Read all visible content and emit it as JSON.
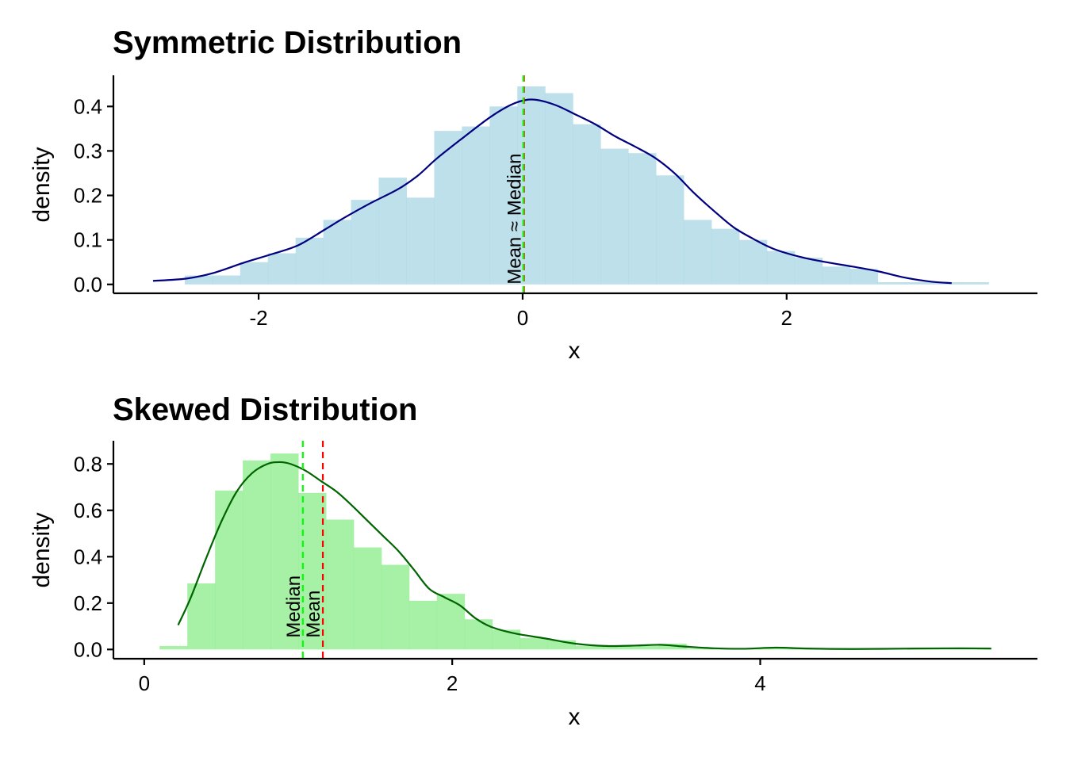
{
  "chart_data": [
    {
      "type": "histogram",
      "title": "Symmetric Distribution",
      "xlabel": "x",
      "ylabel": "density",
      "xlim": [
        -3.1,
        3.9
      ],
      "ylim": [
        -0.02,
        0.47
      ],
      "x_ticks": [
        -2,
        0,
        2
      ],
      "x_tick_labels": [
        "-2",
        "0",
        "2"
      ],
      "y_ticks": [
        0.0,
        0.1,
        0.2,
        0.3,
        0.4
      ],
      "y_tick_labels": [
        "0.0",
        "0.1",
        "0.2",
        "0.3",
        "0.4"
      ],
      "grid": false,
      "colors": {
        "bars": "#add8e6",
        "density_line": "#000080",
        "mean_line": "#ff0000",
        "median_line": "#00ff00"
      },
      "bin_width": 0.21,
      "bins": [
        {
          "x0": -2.56,
          "x1": -2.35,
          "density": 0.02
        },
        {
          "x0": -2.35,
          "x1": -2.14,
          "density": 0.02
        },
        {
          "x0": -2.14,
          "x1": -1.93,
          "density": 0.05
        },
        {
          "x0": -1.93,
          "x1": -1.72,
          "density": 0.07
        },
        {
          "x0": -1.72,
          "x1": -1.51,
          "density": 0.105
        },
        {
          "x0": -1.51,
          "x1": -1.3,
          "density": 0.145
        },
        {
          "x0": -1.3,
          "x1": -1.09,
          "density": 0.19
        },
        {
          "x0": -1.09,
          "x1": -0.88,
          "density": 0.24
        },
        {
          "x0": -0.88,
          "x1": -0.67,
          "density": 0.195
        },
        {
          "x0": -0.67,
          "x1": -0.46,
          "density": 0.345
        },
        {
          "x0": -0.46,
          "x1": -0.25,
          "density": 0.355
        },
        {
          "x0": -0.25,
          "x1": -0.04,
          "density": 0.4
        },
        {
          "x0": -0.04,
          "x1": 0.17,
          "density": 0.445
        },
        {
          "x0": 0.17,
          "x1": 0.38,
          "density": 0.43
        },
        {
          "x0": 0.38,
          "x1": 0.59,
          "density": 0.36
        },
        {
          "x0": 0.59,
          "x1": 0.8,
          "density": 0.305
        },
        {
          "x0": 0.8,
          "x1": 1.01,
          "density": 0.295
        },
        {
          "x0": 1.01,
          "x1": 1.22,
          "density": 0.245
        },
        {
          "x0": 1.22,
          "x1": 1.43,
          "density": 0.145
        },
        {
          "x0": 1.43,
          "x1": 1.64,
          "density": 0.125
        },
        {
          "x0": 1.64,
          "x1": 1.85,
          "density": 0.1
        },
        {
          "x0": 1.85,
          "x1": 2.06,
          "density": 0.075
        },
        {
          "x0": 2.06,
          "x1": 2.27,
          "density": 0.06
        },
        {
          "x0": 2.27,
          "x1": 2.48,
          "density": 0.04
        },
        {
          "x0": 2.48,
          "x1": 2.69,
          "density": 0.035
        },
        {
          "x0": 2.69,
          "x1": 2.9,
          "density": 0.005
        },
        {
          "x0": 2.9,
          "x1": 3.11,
          "density": 0.005
        },
        {
          "x0": 3.11,
          "x1": 3.32,
          "density": 0.005
        },
        {
          "x0": 3.32,
          "x1": 3.53,
          "density": 0.005
        }
      ],
      "density_curve": [
        [
          -2.8,
          0.008
        ],
        [
          -2.55,
          0.013
        ],
        [
          -2.35,
          0.025
        ],
        [
          -2.1,
          0.05
        ],
        [
          -1.9,
          0.068
        ],
        [
          -1.7,
          0.088
        ],
        [
          -1.5,
          0.123
        ],
        [
          -1.35,
          0.15
        ],
        [
          -1.15,
          0.183
        ],
        [
          -0.95,
          0.213
        ],
        [
          -0.8,
          0.243
        ],
        [
          -0.65,
          0.283
        ],
        [
          -0.45,
          0.33
        ],
        [
          -0.25,
          0.375
        ],
        [
          -0.1,
          0.402
        ],
        [
          0.0,
          0.413
        ],
        [
          0.1,
          0.415
        ],
        [
          0.25,
          0.403
        ],
        [
          0.4,
          0.382
        ],
        [
          0.55,
          0.36
        ],
        [
          0.7,
          0.333
        ],
        [
          0.85,
          0.31
        ],
        [
          1.0,
          0.285
        ],
        [
          1.15,
          0.25
        ],
        [
          1.3,
          0.205
        ],
        [
          1.45,
          0.165
        ],
        [
          1.6,
          0.128
        ],
        [
          1.75,
          0.102
        ],
        [
          1.9,
          0.08
        ],
        [
          2.1,
          0.062
        ],
        [
          2.3,
          0.05
        ],
        [
          2.5,
          0.04
        ],
        [
          2.7,
          0.029
        ],
        [
          2.9,
          0.015
        ],
        [
          3.1,
          0.006
        ],
        [
          3.25,
          0.003
        ]
      ],
      "mean": 0.01,
      "median": 0.005,
      "annotations": [
        {
          "text": "Mean ≈ Median",
          "x": 0.01,
          "y": 0.0,
          "rotation": -90
        }
      ]
    },
    {
      "type": "histogram",
      "title": "Skewed Distribution",
      "xlabel": "x",
      "ylabel": "density",
      "xlim": [
        -0.2,
        5.8
      ],
      "ylim": [
        -0.04,
        0.9
      ],
      "x_ticks": [
        0,
        2,
        4
      ],
      "x_tick_labels": [
        "0",
        "2",
        "4"
      ],
      "y_ticks": [
        0.0,
        0.2,
        0.4,
        0.6,
        0.8
      ],
      "y_tick_labels": [
        "0.0",
        "0.2",
        "0.4",
        "0.6",
        "0.8"
      ],
      "grid": false,
      "colors": {
        "bars": "#90ee90",
        "density_line": "#006400",
        "mean_line": "#ff0000",
        "median_line": "#00ff00"
      },
      "bin_width": 0.18,
      "bins": [
        {
          "x0": 0.1,
          "x1": 0.28,
          "density": 0.015
        },
        {
          "x0": 0.28,
          "x1": 0.46,
          "density": 0.285
        },
        {
          "x0": 0.46,
          "x1": 0.64,
          "density": 0.685
        },
        {
          "x0": 0.64,
          "x1": 0.82,
          "density": 0.815
        },
        {
          "x0": 0.82,
          "x1": 1.0,
          "density": 0.845
        },
        {
          "x0": 1.0,
          "x1": 1.18,
          "density": 0.675
        },
        {
          "x0": 1.18,
          "x1": 1.36,
          "density": 0.56
        },
        {
          "x0": 1.36,
          "x1": 1.54,
          "density": 0.44
        },
        {
          "x0": 1.54,
          "x1": 1.72,
          "density": 0.365
        },
        {
          "x0": 1.72,
          "x1": 1.9,
          "density": 0.21
        },
        {
          "x0": 1.9,
          "x1": 2.08,
          "density": 0.24
        },
        {
          "x0": 2.08,
          "x1": 2.26,
          "density": 0.13
        },
        {
          "x0": 2.26,
          "x1": 2.44,
          "density": 0.085
        },
        {
          "x0": 2.44,
          "x1": 2.62,
          "density": 0.05
        },
        {
          "x0": 2.62,
          "x1": 2.8,
          "density": 0.04
        },
        {
          "x0": 2.8,
          "x1": 2.98,
          "density": 0.015
        },
        {
          "x0": 2.98,
          "x1": 3.16,
          "density": 0.015
        },
        {
          "x0": 3.16,
          "x1": 3.34,
          "density": 0.015
        },
        {
          "x0": 3.34,
          "x1": 3.52,
          "density": 0.025
        },
        {
          "x0": 3.52,
          "x1": 3.7,
          "density": 0.005
        },
        {
          "x0": 3.7,
          "x1": 3.88,
          "density": 0.005
        },
        {
          "x0": 3.88,
          "x1": 4.06,
          "density": 0.005
        },
        {
          "x0": 4.06,
          "x1": 4.24,
          "density": 0.005
        },
        {
          "x0": 4.24,
          "x1": 4.42,
          "density": 0.005
        },
        {
          "x0": 4.42,
          "x1": 4.6,
          "density": 0.005
        },
        {
          "x0": 4.6,
          "x1": 4.78,
          "density": 0.005
        },
        {
          "x0": 4.78,
          "x1": 4.96,
          "density": 0.005
        },
        {
          "x0": 4.96,
          "x1": 5.14,
          "density": 0.005
        },
        {
          "x0": 5.14,
          "x1": 5.32,
          "density": 0.005
        },
        {
          "x0": 5.32,
          "x1": 5.5,
          "density": 0.005
        }
      ],
      "density_curve": [
        [
          0.22,
          0.105
        ],
        [
          0.3,
          0.22
        ],
        [
          0.4,
          0.39
        ],
        [
          0.5,
          0.55
        ],
        [
          0.6,
          0.68
        ],
        [
          0.7,
          0.76
        ],
        [
          0.8,
          0.8
        ],
        [
          0.88,
          0.808
        ],
        [
          0.95,
          0.8
        ],
        [
          1.05,
          0.77
        ],
        [
          1.15,
          0.725
        ],
        [
          1.25,
          0.68
        ],
        [
          1.35,
          0.62
        ],
        [
          1.45,
          0.555
        ],
        [
          1.55,
          0.49
        ],
        [
          1.65,
          0.425
        ],
        [
          1.75,
          0.345
        ],
        [
          1.85,
          0.262
        ],
        [
          1.95,
          0.225
        ],
        [
          2.05,
          0.19
        ],
        [
          2.15,
          0.135
        ],
        [
          2.25,
          0.098
        ],
        [
          2.4,
          0.07
        ],
        [
          2.6,
          0.048
        ],
        [
          2.8,
          0.025
        ],
        [
          3.0,
          0.015
        ],
        [
          3.2,
          0.017
        ],
        [
          3.35,
          0.02
        ],
        [
          3.5,
          0.013
        ],
        [
          3.7,
          0.005
        ],
        [
          3.9,
          0.003
        ],
        [
          4.1,
          0.008
        ],
        [
          4.3,
          0.004
        ],
        [
          4.6,
          0.002
        ],
        [
          5.0,
          0.004
        ],
        [
          5.3,
          0.005
        ],
        [
          5.5,
          0.004
        ]
      ],
      "mean": 1.16,
      "median": 1.03,
      "annotations": [
        {
          "text": "Median",
          "x": 1.03,
          "y": 0.05,
          "rotation": -90
        },
        {
          "text": "Mean",
          "x": 1.16,
          "y": 0.05,
          "rotation": -90
        }
      ]
    }
  ]
}
